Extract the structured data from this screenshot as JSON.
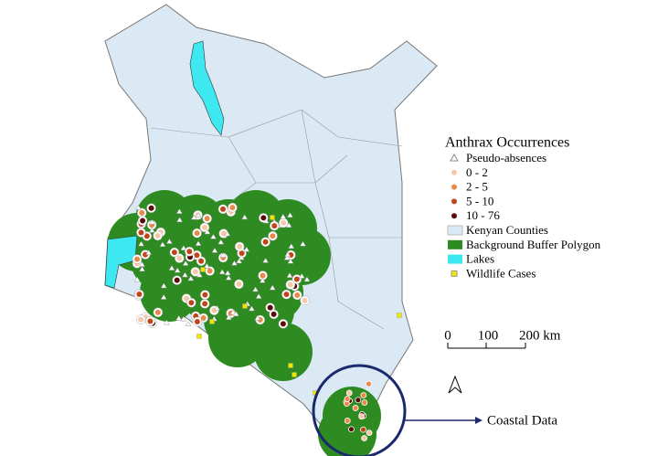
{
  "legend": {
    "title": "Anthrax Occurrences",
    "items": [
      "Pseudo-absences",
      "0 - 2",
      "2 - 5",
      "5 - 10",
      "10 - 76",
      "Kenyan Counties",
      "Background Buffer Polygon",
      "Lakes",
      "Wildlife Cases"
    ]
  },
  "scale_bar": {
    "labels": [
      "0",
      "100",
      "200 km"
    ]
  },
  "callout": "Coastal Data"
}
